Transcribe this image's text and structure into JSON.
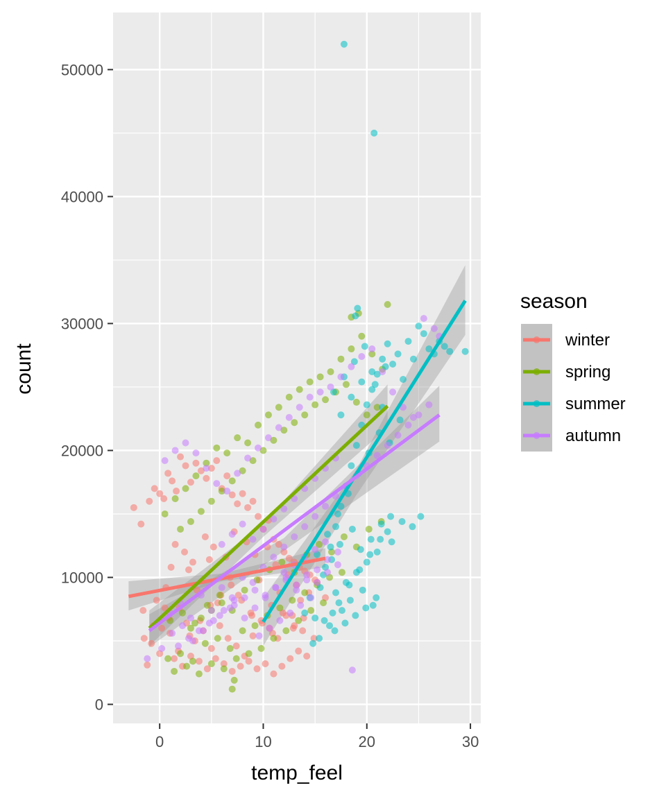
{
  "chart_data": {
    "type": "scatter",
    "title": "",
    "xlabel": "temp_feel",
    "ylabel": "count",
    "xlim": [
      -4.5,
      31
    ],
    "ylim": [
      -1500,
      54500
    ],
    "x_ticks": [
      0,
      10,
      20,
      30
    ],
    "y_ticks": [
      0,
      10000,
      20000,
      30000,
      40000,
      50000
    ],
    "x_tick_labels": [
      "0",
      "10",
      "20",
      "30"
    ],
    "y_tick_labels": [
      "0",
      "10000",
      "20000",
      "30000",
      "40000",
      "50000"
    ],
    "grid": true,
    "legend": {
      "title": "season",
      "placement": "right",
      "entries": [
        "winter",
        "spring",
        "summer",
        "autumn"
      ]
    },
    "colors": {
      "winter": "#F8766D",
      "spring": "#7CAE00",
      "summer": "#00BFC4",
      "autumn": "#C77CFF"
    },
    "series": [
      {
        "name": "winter",
        "fit": {
          "x": [
            -3,
            16
          ],
          "y": [
            8500,
            11500
          ]
        },
        "band": {
          "x": [
            -3,
            6,
            16
          ],
          "lower": [
            7400,
            9700,
            10800
          ],
          "upper": [
            9700,
            10300,
            12300
          ]
        },
        "points": {
          "x": [
            -2.5,
            -1.8,
            -1,
            -0.5,
            0,
            0.4,
            0.8,
            1.2,
            1.6,
            2,
            2.5,
            3,
            3.5,
            4,
            4.5,
            5,
            5.5,
            6,
            6.5,
            7,
            7.5,
            8,
            8.5,
            9,
            9.5,
            10,
            10.5,
            11,
            11.5,
            12,
            12.5,
            13,
            13.5,
            14,
            14.5,
            15,
            -1.5,
            -0.8,
            0.2,
            1,
            1.8,
            2.6,
            3.4,
            4.2,
            5,
            5.8,
            6.6,
            7.4,
            8.2,
            9,
            9.8,
            10.6,
            11.4,
            12.2,
            13,
            13.8,
            -1.2,
            0,
            1.4,
            2.2,
            3,
            3.8,
            4.6,
            5.4,
            6.2,
            7,
            7.8,
            8.6,
            9.4,
            10.2,
            11,
            11.8,
            12.6,
            13.4,
            14.2,
            -0.3,
            0.6,
            1.1,
            2.4,
            3.2,
            4.4,
            5.2,
            6.4,
            7.2,
            8.4,
            9.2,
            10.4,
            11.2,
            12.4,
            13.2,
            14.4,
            15.2,
            16,
            0.5,
            1.5,
            2.8,
            3.6,
            4.8,
            5.6,
            6.8,
            7.6,
            8.8,
            9.6,
            10.8,
            11.6,
            12.8,
            13.6,
            -1.6,
            -0.6,
            0.9,
            1.9,
            2.9,
            3.9,
            4.9,
            5.9,
            6.9,
            7.9,
            8.9,
            9.9,
            10.9,
            11.9,
            12.9,
            13.9,
            14.9
          ],
          "y": [
            15500,
            14200,
            16000,
            17000,
            16600,
            16200,
            18200,
            17600,
            16800,
            19500,
            18800,
            17500,
            19000,
            18400,
            17800,
            18600,
            19200,
            17000,
            18000,
            16500,
            15800,
            16600,
            15500,
            16000,
            14800,
            13800,
            14500,
            13000,
            12600,
            12000,
            11500,
            11200,
            10800,
            10500,
            10200,
            9800,
            5200,
            4800,
            6000,
            5600,
            4200,
            6400,
            5000,
            5800,
            4400,
            6200,
            5200,
            4600,
            3800,
            5400,
            6600,
            6000,
            5200,
            7000,
            6200,
            5800,
            3100,
            4000,
            3600,
            3000,
            3800,
            3400,
            2800,
            3600,
            3200,
            2600,
            3000,
            3400,
            2800,
            3200,
            2400,
            3000,
            3600,
            4200,
            3800,
            8200,
            9200,
            10800,
            12000,
            11200,
            13200,
            12400,
            11600,
            13600,
            12800,
            11800,
            12400,
            11000,
            10200,
            9400,
            8800,
            9600,
            8400,
            7600,
            12600,
            10600,
            9000,
            11400,
            8000,
            10000,
            8600,
            7200,
            9800,
            7800,
            8800,
            7000,
            8200,
            7400,
            6200,
            6800,
            7600,
            5400,
            6600,
            7800,
            8600,
            9400,
            8200,
            7000,
            6400,
            5600,
            7200,
            6000,
            6800,
            5200
          ]
        }
      },
      {
        "name": "spring",
        "fit": {
          "x": [
            -1,
            22
          ],
          "y": [
            6000,
            23500
          ]
        },
        "band": {
          "x": [
            -1,
            10,
            22
          ],
          "lower": [
            4600,
            13200,
            21800
          ],
          "upper": [
            7400,
            14200,
            25200
          ]
        },
        "points": {
          "x": [
            0.5,
            1.5,
            2.5,
            3.5,
            4.5,
            5.5,
            6.5,
            7.5,
            8.5,
            9.5,
            10.5,
            11.5,
            12.5,
            13.5,
            14.5,
            15.5,
            16.5,
            17.5,
            18.5,
            19.5,
            20.5,
            21.5,
            22,
            2,
            3,
            4,
            5,
            6,
            7,
            8,
            9,
            10,
            11,
            12,
            13,
            14,
            15,
            16,
            17,
            18,
            19,
            20,
            21,
            1,
            2.2,
            3.4,
            4.6,
            5.8,
            7,
            8.2,
            9.4,
            10.6,
            11.8,
            13,
            14.2,
            15.4,
            16.6,
            17.8,
            19,
            20.2,
            21.4,
            18.5,
            19.2,
            0.8,
            2,
            3.2,
            4.4,
            5.6,
            6.8,
            8,
            9.2,
            10.4,
            11.6,
            12.8,
            14,
            15.2,
            16.4,
            17.6,
            1.4,
            2.6,
            3.8,
            5,
            6.2,
            7.4,
            8.6,
            9.8,
            11,
            12.2,
            13.4,
            14.6,
            15.8,
            7,
            7.2,
            3,
            4,
            5,
            6
          ],
          "y": [
            15000,
            16200,
            17000,
            18000,
            19000,
            20200,
            19800,
            21000,
            20600,
            22000,
            22800,
            23400,
            24200,
            24800,
            25400,
            25800,
            26200,
            27200,
            28000,
            29000,
            27600,
            26400,
            31500,
            13800,
            14400,
            15200,
            16000,
            16800,
            17600,
            18400,
            19200,
            20000,
            20800,
            21600,
            22200,
            22800,
            23600,
            24000,
            24600,
            25200,
            23800,
            22800,
            23400,
            6600,
            7200,
            6400,
            7800,
            8600,
            7400,
            9000,
            9800,
            10600,
            11200,
            10400,
            11800,
            12600,
            12000,
            13200,
            12400,
            13800,
            14400,
            30500,
            30800,
            3600,
            4000,
            3400,
            4800,
            5200,
            4400,
            5800,
            6200,
            7000,
            7600,
            8200,
            8800,
            9400,
            10000,
            10400,
            2600,
            3000,
            2400,
            3200,
            2800,
            3600,
            4000,
            4400,
            5200,
            5800,
            6600,
            7400,
            8000,
            1200,
            1900,
            6000,
            6800,
            7400,
            8000
          ]
        }
      },
      {
        "name": "summer",
        "fit": {
          "x": [
            10,
            29.5
          ],
          "y": [
            6500,
            31800
          ]
        },
        "band": {
          "x": [
            10,
            19,
            29.5
          ],
          "lower": [
            4600,
            16500,
            29100
          ],
          "upper": [
            8400,
            18500,
            34600
          ]
        },
        "points": {
          "x": [
            14,
            14.5,
            15,
            15.5,
            16,
            16.5,
            17,
            17.5,
            18,
            18.5,
            19,
            19.5,
            20,
            20.5,
            21,
            21.5,
            22,
            22.5,
            23,
            23.5,
            24,
            24.5,
            25,
            25.5,
            26,
            26.5,
            27,
            27.5,
            28,
            29.5,
            15.2,
            16.2,
            17.2,
            18.2,
            19.2,
            20.2,
            21.2,
            22.2,
            23.2,
            16.8,
            17.8,
            18.8,
            19.8,
            20.8,
            21.8,
            15.8,
            16.6,
            17.4,
            18.6,
            19.4,
            20.4,
            21.4,
            22.4,
            17,
            18,
            19,
            20,
            21,
            22,
            17.5,
            18.5,
            19.5,
            20.5,
            21.5,
            16.4,
            17.6,
            18.4,
            19.6,
            20.6,
            15.4,
            16.9,
            17.9,
            18.9,
            19.9,
            20.9,
            14.8,
            15.9,
            16.7,
            17.3,
            18.3,
            19.3,
            20.3,
            21.3,
            22.3,
            23.4,
            24.4,
            25.2,
            17.8,
            20.7,
            18.9,
            19.1
          ],
          "y": [
            7200,
            8400,
            6800,
            9200,
            10800,
            12400,
            14000,
            15600,
            17200,
            18800,
            20400,
            22000,
            23600,
            24800,
            26000,
            27200,
            28400,
            26800,
            27600,
            25600,
            28600,
            27200,
            29800,
            29200,
            28000,
            27600,
            28600,
            28200,
            27800,
            27800,
            11800,
            13400,
            15000,
            16600,
            18200,
            19800,
            21400,
            20600,
            22400,
            24600,
            25800,
            27000,
            28200,
            25200,
            26600,
            10200,
            11400,
            12600,
            13800,
            12200,
            13000,
            14200,
            12800,
            8800,
            9600,
            10400,
            11200,
            12000,
            13600,
            22800,
            24200,
            25400,
            26200,
            23400,
            6200,
            7400,
            8200,
            9000,
            7800,
            5200,
            5800,
            6400,
            7000,
            7600,
            8400,
            4800,
            6600,
            7200,
            8000,
            9400,
            10600,
            11800,
            13000,
            14800,
            14400,
            14000,
            14800,
            52000,
            45000,
            30600,
            31200
          ]
        }
      },
      {
        "name": "autumn",
        "fit": {
          "x": [
            -1,
            27
          ],
          "y": [
            5800,
            22800
          ]
        },
        "band": {
          "x": [
            -1,
            12,
            27
          ],
          "lower": [
            4500,
            12100,
            20700
          ],
          "upper": [
            7100,
            13100,
            25100
          ]
        },
        "points": {
          "x": [
            0.5,
            1.5,
            2.5,
            3.5,
            4.5,
            5.5,
            6.5,
            7.5,
            8.5,
            9.5,
            10.5,
            11.5,
            12.5,
            13.5,
            14.5,
            15.5,
            16.5,
            17.5,
            18.5,
            19.5,
            20.5,
            21.5,
            22.5,
            23.5,
            24.5,
            25.5,
            26.5,
            27,
            1,
            2,
            3,
            4,
            5,
            6,
            7,
            8,
            9,
            10,
            11,
            12,
            13,
            14,
            15,
            16,
            17,
            18,
            19,
            20,
            21,
            22,
            23,
            24,
            25,
            26,
            7.2,
            8.2,
            9.2,
            10.2,
            11.2,
            12.2,
            13.2,
            14.2,
            15.2,
            16.2,
            17.2,
            6,
            7,
            8,
            9,
            10,
            11,
            12,
            13,
            14,
            15,
            16,
            17,
            9.6,
            10.6,
            11.6,
            12.6,
            13.6,
            14.6,
            1.8,
            2.8,
            3.8,
            4.8,
            5.8,
            6.8,
            12,
            13,
            14,
            15,
            16,
            18.6,
            -1.2,
            0.2,
            1.2,
            2.2,
            3.2,
            4.2,
            5.2,
            6.2,
            7.2,
            8.2,
            9.2,
            10.2,
            11.2,
            12.2,
            13.2,
            14.2,
            15.2,
            16.2,
            17.2
          ],
          "y": [
            19200,
            20000,
            20600,
            19800,
            18600,
            17400,
            16800,
            18200,
            19400,
            20200,
            21000,
            21800,
            22600,
            23400,
            24200,
            24600,
            25000,
            25800,
            26600,
            27400,
            28000,
            26200,
            24600,
            23400,
            22600,
            30400,
            29600,
            29000,
            7200,
            8000,
            6800,
            8600,
            7400,
            9200,
            8400,
            10000,
            9600,
            10800,
            11600,
            12400,
            13200,
            14000,
            14800,
            15600,
            16400,
            17200,
            18000,
            18800,
            19600,
            20400,
            21200,
            22000,
            22800,
            23600,
            7800,
            8400,
            9000,
            8600,
            9200,
            9800,
            9400,
            10200,
            9600,
            10400,
            11000,
            12600,
            13400,
            14200,
            13000,
            13800,
            14600,
            15400,
            16200,
            17000,
            17800,
            18600,
            19400,
            5400,
            6000,
            6600,
            7200,
            7800,
            8400,
            4600,
            5200,
            5800,
            6400,
            7000,
            7600,
            10400,
            11000,
            11600,
            12200,
            12800,
            2700,
            3600,
            4400,
            5600,
            6200,
            5000,
            5800,
            6600,
            7400,
            8200,
            6800,
            7600,
            8400,
            9200,
            10000,
            9000,
            9800,
            10600,
            11400,
            12000
          ]
        }
      }
    ]
  }
}
